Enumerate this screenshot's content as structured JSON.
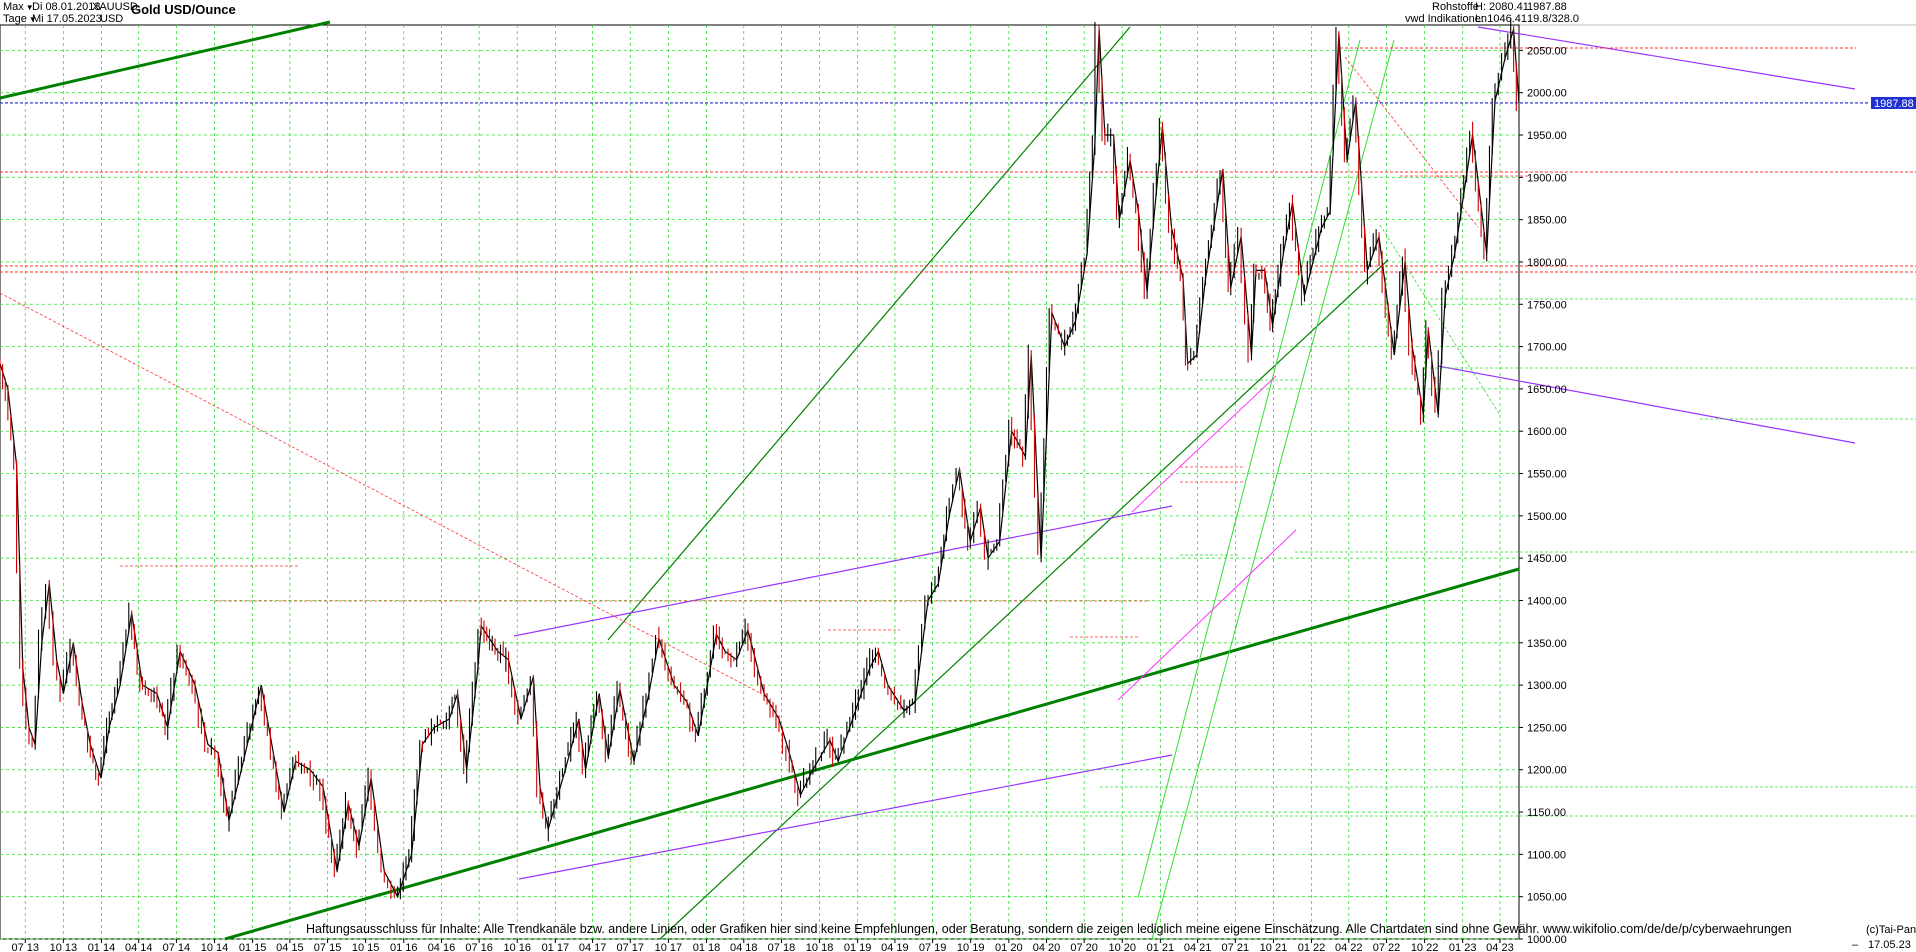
{
  "header": {
    "range_select": "Max",
    "interval_select": "Tage",
    "date_from": "Di 08.01.2013",
    "date_to": "Mi 17.05.2023",
    "symbol": "XAUUSD",
    "currency": "USD",
    "title": "Gold USD/Ounce",
    "category": "Rohstoffe",
    "source": "vwd Indikationen",
    "high": "H: 2080.41",
    "low": "L: 1046.41",
    "last_top": "1987.88",
    "last_sub": "19.8/328.0"
  },
  "footer": {
    "disclaimer": "Haftungsausschluss für Inhalte: Alle Trendkanäle bzw. andere Linien, oder Grafiken hier sind keine Empfehlungen, oder Beratung, sondern die zeigen lediglich meine eigene Einschätzung. Alle Chartdaten sind ohne Gewähr.  www.wikifolio.com/de/de/p/cyberwaehrungen",
    "copyright": "(c)Tai-Pan",
    "date_label": "17.05.23",
    "dash": "–"
  },
  "chart_data": {
    "type": "line",
    "title": "Gold USD/Ounce",
    "xlabel": "",
    "ylabel": "",
    "ylim": [
      1000,
      2080
    ],
    "xlim": [
      "2013-05-01",
      "2023-05-17"
    ],
    "grid": true,
    "last_price": 1987.88,
    "last_price_label": "1987.88",
    "colors": {
      "candles": "#000000",
      "down": "#cc0000",
      "grid": "#33dd33",
      "support_trend": "#008000",
      "channel": "#9933ff",
      "fan": "#ff33ff",
      "resistance": "#ff3333",
      "last_price_line": "#2222cc",
      "last_price_box": "#1f2fd0"
    },
    "y_ticks": [
      1000,
      1050,
      1100,
      1150,
      1200,
      1250,
      1300,
      1350,
      1400,
      1450,
      1500,
      1550,
      1600,
      1650,
      1700,
      1750,
      1800,
      1850,
      1900,
      1950,
      2000,
      2050
    ],
    "y_tick_labels": [
      "1000.00",
      "1050.00",
      "1100.00",
      "1150.00",
      "1200.00",
      "1250.00",
      "1300.00",
      "1350.00",
      "1400.00",
      "1450.00",
      "1500.00",
      "1550.00",
      "1600.00",
      "1650.00",
      "1700.00",
      "1750.00",
      "1800.00",
      "1850.00",
      "1900.00",
      "1950.00",
      "2000.00",
      "2050.00"
    ],
    "x_ticks": [
      {
        "date": "2013-07-01",
        "label": "07 13"
      },
      {
        "date": "2013-10-01",
        "label": "10 13"
      },
      {
        "date": "2014-01-01",
        "label": "01 14"
      },
      {
        "date": "2014-04-01",
        "label": "04 14"
      },
      {
        "date": "2014-07-01",
        "label": "07 14"
      },
      {
        "date": "2014-10-01",
        "label": "10 14"
      },
      {
        "date": "2015-01-01",
        "label": "01 15"
      },
      {
        "date": "2015-04-01",
        "label": "04 15"
      },
      {
        "date": "2015-07-01",
        "label": "07 15"
      },
      {
        "date": "2015-10-01",
        "label": "10 15"
      },
      {
        "date": "2016-01-01",
        "label": "01 16"
      },
      {
        "date": "2016-04-01",
        "label": "04 16"
      },
      {
        "date": "2016-07-01",
        "label": "07 16"
      },
      {
        "date": "2016-10-01",
        "label": "10 16"
      },
      {
        "date": "2017-01-01",
        "label": "01 17"
      },
      {
        "date": "2017-04-01",
        "label": "04 17"
      },
      {
        "date": "2017-07-01",
        "label": "07 17"
      },
      {
        "date": "2017-10-01",
        "label": "10 17"
      },
      {
        "date": "2018-01-01",
        "label": "01 18"
      },
      {
        "date": "2018-04-01",
        "label": "04 18"
      },
      {
        "date": "2018-07-01",
        "label": "07 18"
      },
      {
        "date": "2018-10-01",
        "label": "10 18"
      },
      {
        "date": "2019-01-01",
        "label": "01 19"
      },
      {
        "date": "2019-04-01",
        "label": "04 19"
      },
      {
        "date": "2019-07-01",
        "label": "07 19"
      },
      {
        "date": "2019-10-01",
        "label": "10 19"
      },
      {
        "date": "2020-01-01",
        "label": "01 20"
      },
      {
        "date": "2020-04-01",
        "label": "04 20"
      },
      {
        "date": "2020-07-01",
        "label": "07 20"
      },
      {
        "date": "2020-10-01",
        "label": "10 20"
      },
      {
        "date": "2021-01-01",
        "label": "01 21"
      },
      {
        "date": "2021-04-01",
        "label": "04 21"
      },
      {
        "date": "2021-07-01",
        "label": "07 21"
      },
      {
        "date": "2021-10-01",
        "label": "10 21"
      },
      {
        "date": "2022-01-01",
        "label": "01 22"
      },
      {
        "date": "2022-04-01",
        "label": "04 22"
      },
      {
        "date": "2022-07-01",
        "label": "07 22"
      },
      {
        "date": "2022-10-01",
        "label": "10 22"
      },
      {
        "date": "2023-01-01",
        "label": "01 23"
      },
      {
        "date": "2023-04-01",
        "label": "04 23"
      }
    ],
    "series": [
      {
        "values": [
          [
            "2013-05-01",
            1680
          ],
          [
            "2013-05-20",
            1650
          ],
          [
            "2013-06-10",
            1560
          ],
          [
            "2013-06-25",
            1320
          ],
          [
            "2013-07-10",
            1250
          ],
          [
            "2013-07-25",
            1230
          ],
          [
            "2013-08-10",
            1350
          ],
          [
            "2013-08-28",
            1420
          ],
          [
            "2013-09-15",
            1330
          ],
          [
            "2013-10-01",
            1290
          ],
          [
            "2013-10-25",
            1350
          ],
          [
            "2013-11-15",
            1280
          ],
          [
            "2013-12-05",
            1230
          ],
          [
            "2013-12-31",
            1190
          ],
          [
            "2014-01-20",
            1250
          ],
          [
            "2014-02-15",
            1300
          ],
          [
            "2014-03-15",
            1385
          ],
          [
            "2014-04-10",
            1300
          ],
          [
            "2014-05-15",
            1290
          ],
          [
            "2014-06-10",
            1250
          ],
          [
            "2014-07-10",
            1340
          ],
          [
            "2014-08-15",
            1300
          ],
          [
            "2014-09-15",
            1230
          ],
          [
            "2014-10-10",
            1220
          ],
          [
            "2014-11-05",
            1140
          ],
          [
            "2014-12-05",
            1200
          ],
          [
            "2015-01-22",
            1300
          ],
          [
            "2015-02-20",
            1220
          ],
          [
            "2015-03-18",
            1150
          ],
          [
            "2015-04-15",
            1210
          ],
          [
            "2015-05-20",
            1200
          ],
          [
            "2015-06-20",
            1180
          ],
          [
            "2015-07-24",
            1080
          ],
          [
            "2015-08-20",
            1160
          ],
          [
            "2015-09-15",
            1110
          ],
          [
            "2015-10-14",
            1190
          ],
          [
            "2015-11-15",
            1080
          ],
          [
            "2015-12-17",
            1050
          ],
          [
            "2016-01-20",
            1100
          ],
          [
            "2016-02-15",
            1230
          ],
          [
            "2016-03-15",
            1250
          ],
          [
            "2016-04-20",
            1260
          ],
          [
            "2016-05-10",
            1290
          ],
          [
            "2016-06-01",
            1200
          ],
          [
            "2016-06-28",
            1320
          ],
          [
            "2016-07-06",
            1370
          ],
          [
            "2016-08-15",
            1340
          ],
          [
            "2016-09-10",
            1330
          ],
          [
            "2016-10-10",
            1260
          ],
          [
            "2016-11-09",
            1310
          ],
          [
            "2016-11-25",
            1180
          ],
          [
            "2016-12-15",
            1130
          ],
          [
            "2017-01-25",
            1200
          ],
          [
            "2017-02-27",
            1260
          ],
          [
            "2017-03-15",
            1200
          ],
          [
            "2017-04-17",
            1290
          ],
          [
            "2017-05-09",
            1215
          ],
          [
            "2017-06-06",
            1295
          ],
          [
            "2017-07-10",
            1210
          ],
          [
            "2017-08-15",
            1290
          ],
          [
            "2017-09-08",
            1355
          ],
          [
            "2017-10-15",
            1300
          ],
          [
            "2017-11-15",
            1280
          ],
          [
            "2017-12-12",
            1240
          ],
          [
            "2018-01-25",
            1360
          ],
          [
            "2018-02-15",
            1340
          ],
          [
            "2018-03-15",
            1330
          ],
          [
            "2018-04-11",
            1365
          ],
          [
            "2018-05-20",
            1290
          ],
          [
            "2018-06-25",
            1260
          ],
          [
            "2018-07-20",
            1220
          ],
          [
            "2018-08-16",
            1170
          ],
          [
            "2018-09-15",
            1200
          ],
          [
            "2018-10-26",
            1235
          ],
          [
            "2018-11-15",
            1210
          ],
          [
            "2018-12-20",
            1260
          ],
          [
            "2019-01-30",
            1320
          ],
          [
            "2019-02-20",
            1340
          ],
          [
            "2019-03-15",
            1300
          ],
          [
            "2019-04-23",
            1270
          ],
          [
            "2019-05-20",
            1280
          ],
          [
            "2019-06-20",
            1400
          ],
          [
            "2019-07-15",
            1420
          ],
          [
            "2019-08-10",
            1500
          ],
          [
            "2019-09-04",
            1555
          ],
          [
            "2019-09-30",
            1470
          ],
          [
            "2019-10-25",
            1510
          ],
          [
            "2019-11-12",
            1450
          ],
          [
            "2019-12-10",
            1470
          ],
          [
            "2020-01-08",
            1600
          ],
          [
            "2020-02-10",
            1570
          ],
          [
            "2020-02-24",
            1690
          ],
          [
            "2020-03-19",
            1450
          ],
          [
            "2020-04-14",
            1740
          ],
          [
            "2020-05-15",
            1700
          ],
          [
            "2020-06-10",
            1730
          ],
          [
            "2020-07-08",
            1810
          ],
          [
            "2020-07-27",
            1940
          ],
          [
            "2020-08-06",
            2075
          ],
          [
            "2020-08-20",
            1950
          ],
          [
            "2020-09-10",
            1950
          ],
          [
            "2020-09-24",
            1850
          ],
          [
            "2020-10-20",
            1920
          ],
          [
            "2020-11-09",
            1860
          ],
          [
            "2020-11-30",
            1765
          ],
          [
            "2021-01-06",
            1960
          ],
          [
            "2021-01-28",
            1840
          ],
          [
            "2021-02-25",
            1780
          ],
          [
            "2021-03-08",
            1680
          ],
          [
            "2021-03-30",
            1690
          ],
          [
            "2021-04-20",
            1780
          ],
          [
            "2021-06-01",
            1910
          ],
          [
            "2021-06-20",
            1770
          ],
          [
            "2021-07-15",
            1830
          ],
          [
            "2021-08-09",
            1690
          ],
          [
            "2021-08-20",
            1790
          ],
          [
            "2021-09-10",
            1790
          ],
          [
            "2021-09-29",
            1725
          ],
          [
            "2021-10-25",
            1810
          ],
          [
            "2021-11-16",
            1870
          ],
          [
            "2021-12-15",
            1760
          ],
          [
            "2022-01-25",
            1840
          ],
          [
            "2022-02-15",
            1860
          ],
          [
            "2022-03-08",
            2070
          ],
          [
            "2022-03-28",
            1920
          ],
          [
            "2022-04-18",
            1990
          ],
          [
            "2022-05-16",
            1790
          ],
          [
            "2022-06-13",
            1830
          ],
          [
            "2022-07-20",
            1690
          ],
          [
            "2022-08-15",
            1800
          ],
          [
            "2022-09-01",
            1700
          ],
          [
            "2022-09-28",
            1620
          ],
          [
            "2022-10-10",
            1720
          ],
          [
            "2022-11-03",
            1620
          ],
          [
            "2022-11-20",
            1760
          ],
          [
            "2022-12-13",
            1810
          ],
          [
            "2023-01-25",
            1950
          ],
          [
            "2023-02-28",
            1810
          ],
          [
            "2023-03-20",
            1990
          ],
          [
            "2023-04-13",
            2040
          ],
          [
            "2023-05-04",
            2075
          ],
          [
            "2023-05-17",
            1988
          ]
        ]
      }
    ]
  }
}
